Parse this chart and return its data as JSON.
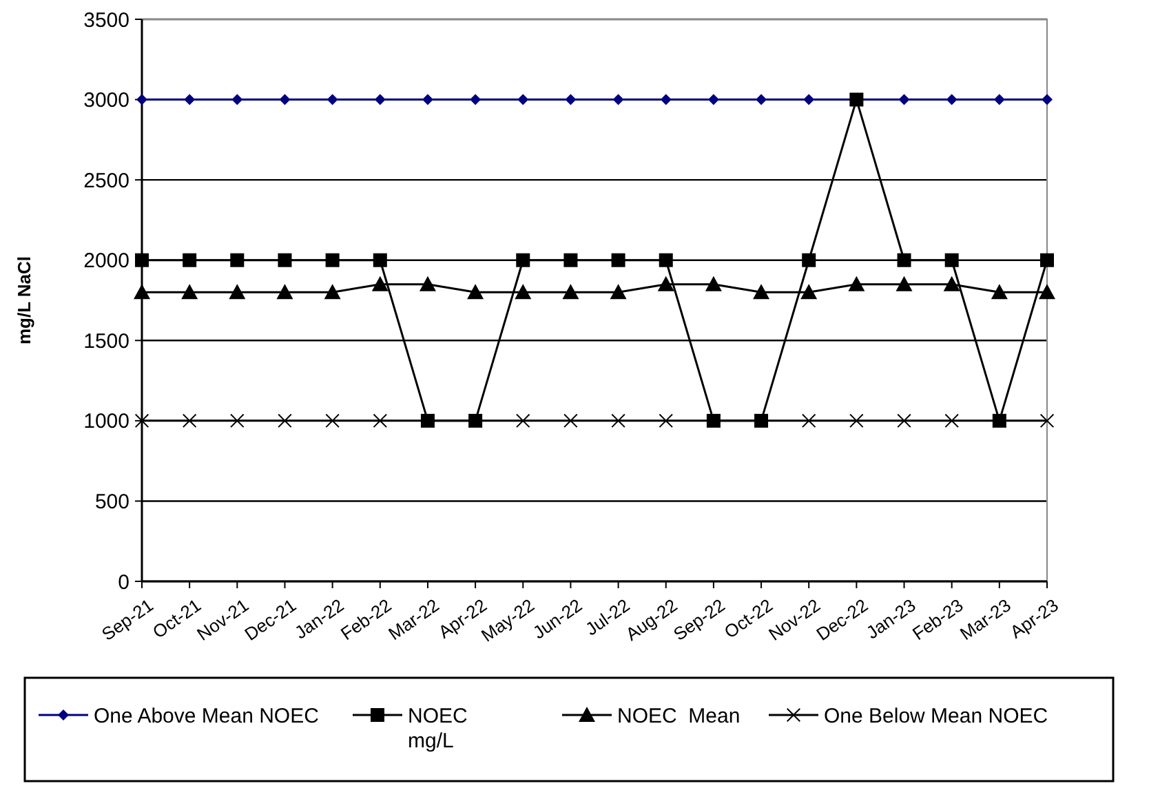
{
  "chart_data": {
    "type": "line",
    "ylabel": "mg/L NaCl",
    "categories": [
      "Sep-21",
      "Oct-21",
      "Nov-21",
      "Dec-21",
      "Jan-22",
      "Feb-22",
      "Mar-22",
      "Apr-22",
      "May-22",
      "Jun-22",
      "Jul-22",
      "Aug-22",
      "Sep-22",
      "Oct-22",
      "Nov-22",
      "Dec-22",
      "Jan-23",
      "Feb-23",
      "Mar-23",
      "Apr-23"
    ],
    "series": [
      {
        "name": "One Above Mean NOEC",
        "color": "#000080",
        "marker": "diamond",
        "values": [
          3000,
          3000,
          3000,
          3000,
          3000,
          3000,
          3000,
          3000,
          3000,
          3000,
          3000,
          3000,
          3000,
          3000,
          3000,
          3000,
          3000,
          3000,
          3000,
          3000
        ]
      },
      {
        "name": "NOEC mg/L",
        "color": "#000000",
        "marker": "square",
        "values": [
          2000,
          2000,
          2000,
          2000,
          2000,
          2000,
          1000,
          1000,
          2000,
          2000,
          2000,
          2000,
          1000,
          1000,
          2000,
          3000,
          2000,
          2000,
          1000,
          2000
        ]
      },
      {
        "name": "NOEC  Mean",
        "color": "#000000",
        "marker": "triangle",
        "values": [
          1800,
          1800,
          1800,
          1800,
          1800,
          1850,
          1850,
          1800,
          1800,
          1800,
          1800,
          1850,
          1850,
          1800,
          1800,
          1850,
          1850,
          1850,
          1800,
          1800
        ]
      },
      {
        "name": "One Below Mean NOEC",
        "color": "#000000",
        "marker": "cross",
        "values": [
          1000,
          1000,
          1000,
          1000,
          1000,
          1000,
          1000,
          1000,
          1000,
          1000,
          1000,
          1000,
          1000,
          1000,
          1000,
          1000,
          1000,
          1000,
          1000,
          1000
        ]
      }
    ],
    "ylim": [
      0,
      3500
    ],
    "yticks": [
      0,
      500,
      1000,
      1500,
      2000,
      2500,
      3000,
      3500
    ],
    "grid": "y",
    "legend": "bottom"
  }
}
